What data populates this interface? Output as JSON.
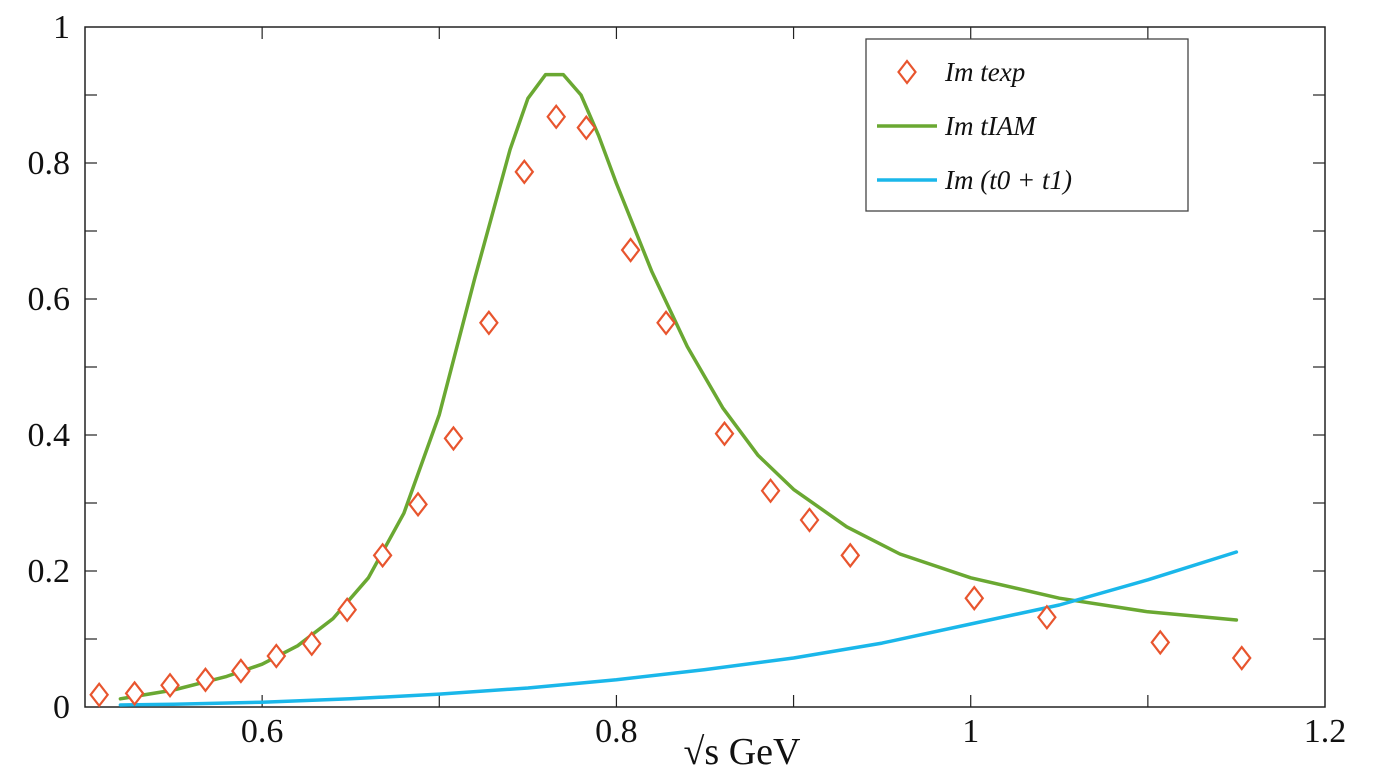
{
  "chart_data": {
    "type": "line",
    "title": "",
    "xlabel": "√s GeV",
    "ylabel": "",
    "xlim": [
      0.5,
      1.2
    ],
    "ylim": [
      0,
      1
    ],
    "grid": false,
    "legend_position": "top-right",
    "xticks": [
      {
        "value": 0.6,
        "label": "0.6"
      },
      {
        "value": 0.8,
        "label": "0.8"
      },
      {
        "value": 1.0,
        "label": "1"
      },
      {
        "value": 1.2,
        "label": "1.2"
      }
    ],
    "yticks": [
      {
        "value": 0.0,
        "label": "0"
      },
      {
        "value": 0.2,
        "label": "0.2"
      },
      {
        "value": 0.4,
        "label": "0.4"
      },
      {
        "value": 0.6,
        "label": "0.6"
      },
      {
        "value": 0.8,
        "label": "0.8"
      },
      {
        "value": 1.0,
        "label": "1"
      }
    ],
    "series": [
      {
        "name": "Im t_exp",
        "legend_label": "Im texp",
        "kind": "markers",
        "marker": "diamond",
        "color": "#e8552e",
        "x": [
          0.508,
          0.528,
          0.548,
          0.568,
          0.588,
          0.608,
          0.628,
          0.648,
          0.668,
          0.688,
          0.708,
          0.728,
          0.748,
          0.766,
          0.783,
          0.808,
          0.828,
          0.861,
          0.887,
          0.909,
          0.932,
          1.002,
          1.043,
          1.107,
          1.153
        ],
        "y": [
          0.018,
          0.02,
          0.032,
          0.04,
          0.053,
          0.075,
          0.093,
          0.143,
          0.223,
          0.298,
          0.395,
          0.565,
          0.787,
          0.868,
          0.852,
          0.672,
          0.565,
          0.402,
          0.318,
          0.275,
          0.223,
          0.16,
          0.132,
          0.095,
          0.072
        ]
      },
      {
        "name": "Im t_IAM",
        "legend_label": "Im tIAM",
        "kind": "line",
        "color": "#6aa832",
        "x": [
          0.52,
          0.55,
          0.58,
          0.6,
          0.62,
          0.64,
          0.66,
          0.68,
          0.7,
          0.72,
          0.74,
          0.75,
          0.76,
          0.77,
          0.78,
          0.79,
          0.8,
          0.82,
          0.84,
          0.86,
          0.88,
          0.9,
          0.93,
          0.96,
          1.0,
          1.05,
          1.1,
          1.15
        ],
        "y": [
          0.012,
          0.025,
          0.045,
          0.063,
          0.09,
          0.13,
          0.19,
          0.285,
          0.43,
          0.63,
          0.82,
          0.895,
          0.93,
          0.93,
          0.9,
          0.84,
          0.77,
          0.64,
          0.53,
          0.44,
          0.37,
          0.32,
          0.265,
          0.225,
          0.19,
          0.16,
          0.14,
          0.128
        ]
      },
      {
        "name": "Im (t0 + t1)",
        "legend_label": "Im (t0 + t1)",
        "kind": "line",
        "color": "#1ab7ea",
        "x": [
          0.52,
          0.55,
          0.6,
          0.65,
          0.7,
          0.75,
          0.8,
          0.85,
          0.9,
          0.95,
          1.0,
          1.05,
          1.1,
          1.15
        ],
        "y": [
          0.003,
          0.004,
          0.007,
          0.012,
          0.019,
          0.028,
          0.04,
          0.055,
          0.072,
          0.094,
          0.122,
          0.15,
          0.187,
          0.228
        ]
      }
    ]
  }
}
